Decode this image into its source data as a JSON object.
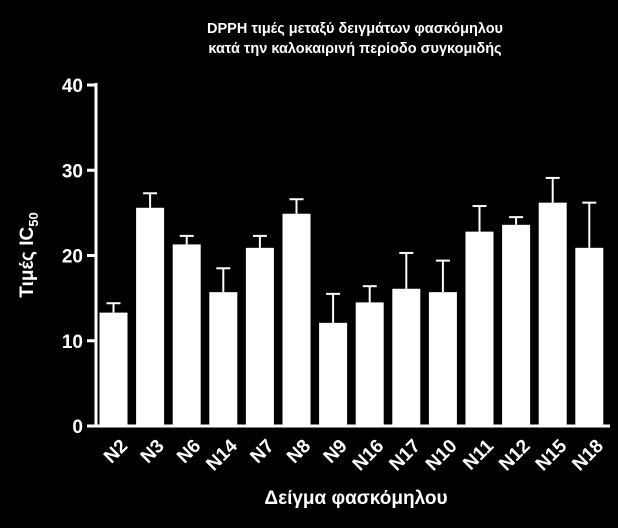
{
  "chart_data": {
    "type": "bar",
    "title_lines": [
      "DPPH τιμές μεταξύ δειγμάτων φασκόμηλου",
      "κατά την καλοκαιρινή περίοδο συγκομιδής"
    ],
    "xlabel": "Δείγμα φασκόμηλου",
    "ylabel": "Τιμές IC",
    "ylabel_sub": "50",
    "categories": [
      "N2",
      "N3",
      "N6",
      "N14",
      "N7",
      "N8",
      "N9",
      "N16",
      "N17",
      "N10",
      "N11",
      "N12",
      "N15",
      "N18"
    ],
    "values": [
      13.3,
      25.6,
      21.3,
      15.7,
      20.9,
      24.9,
      12.1,
      14.5,
      16.1,
      15.7,
      22.8,
      23.6,
      26.2,
      20.9
    ],
    "errors": [
      1.1,
      1.7,
      1.0,
      2.8,
      1.4,
      1.7,
      3.4,
      1.9,
      4.2,
      3.7,
      3.0,
      0.9,
      2.9,
      5.3
    ],
    "ylim": [
      0,
      40
    ],
    "yticks": [
      0,
      10,
      20,
      30,
      40
    ],
    "grid": false,
    "legend": "none",
    "colors": {
      "background": "#000000",
      "bar": "#ffffff",
      "text": "#ffffff"
    }
  }
}
